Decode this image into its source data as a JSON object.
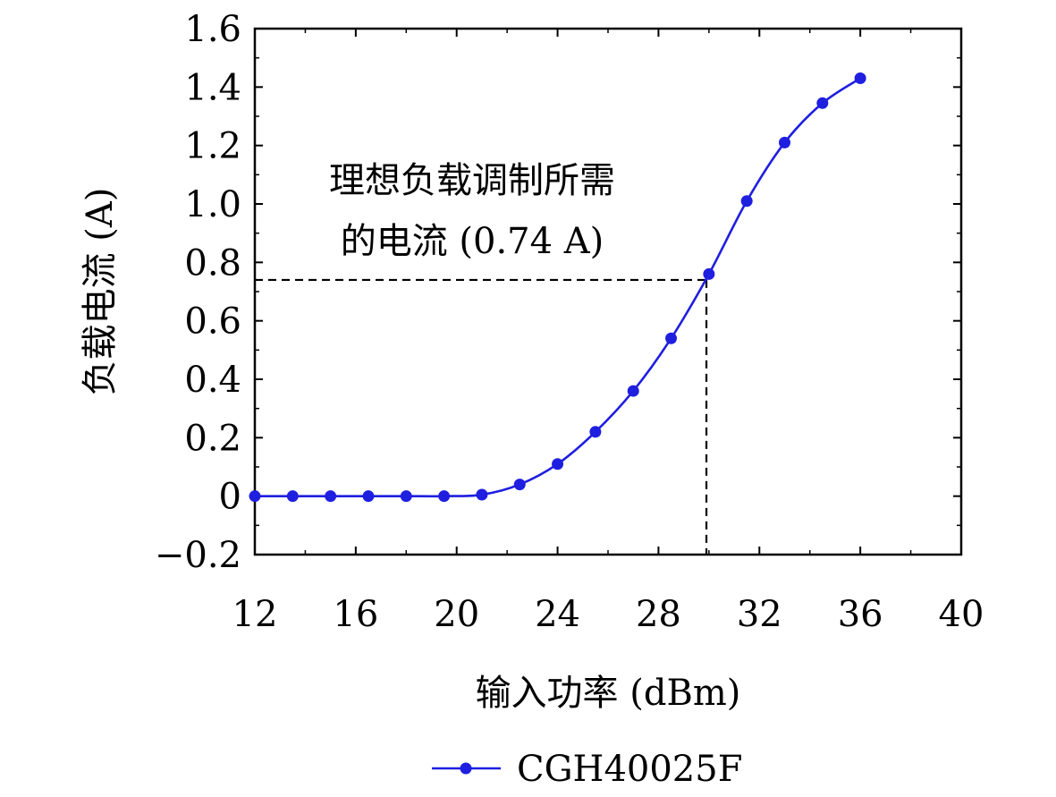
{
  "chart_data": {
    "type": "line",
    "xlabel": "输入功率 (dBm)",
    "ylabel": "负载电流 (A)",
    "xlim": [
      12,
      40
    ],
    "ylim": [
      -0.2,
      1.6
    ],
    "x_ticks": [
      "12",
      "16",
      "20",
      "24",
      "28",
      "32",
      "36",
      "40"
    ],
    "y_ticks": [
      "1.6",
      "1.4",
      "1.2",
      "1.0",
      "0.8",
      "0.6",
      "0.4",
      "0.2",
      "0",
      "−0.2"
    ],
    "x_tick_values": [
      12,
      16,
      20,
      24,
      28,
      32,
      36,
      40
    ],
    "y_tick_values": [
      1.6,
      1.4,
      1.2,
      1.0,
      0.8,
      0.6,
      0.4,
      0.2,
      0,
      -0.2
    ],
    "grid": false,
    "legend_position": "bottom-center",
    "series": [
      {
        "name": "CGH40025F",
        "color": "#1f1fe0",
        "marker": "circle",
        "x": [
          12.0,
          13.5,
          15.0,
          16.5,
          18.0,
          19.5,
          21.0,
          22.5,
          24.0,
          25.5,
          27.0,
          28.5,
          30.0,
          31.5,
          33.0,
          34.5,
          36.0
        ],
        "y": [
          0.0,
          0.0,
          0.0,
          0.0,
          0.0,
          0.0,
          0.005,
          0.04,
          0.11,
          0.22,
          0.36,
          0.54,
          0.76,
          1.01,
          1.21,
          1.345,
          1.43
        ]
      }
    ],
    "annotation": {
      "line1": "理想负载调制所需",
      "line2": "的电流 (0.74 A)",
      "x": 29.9,
      "y": 0.74
    }
  }
}
